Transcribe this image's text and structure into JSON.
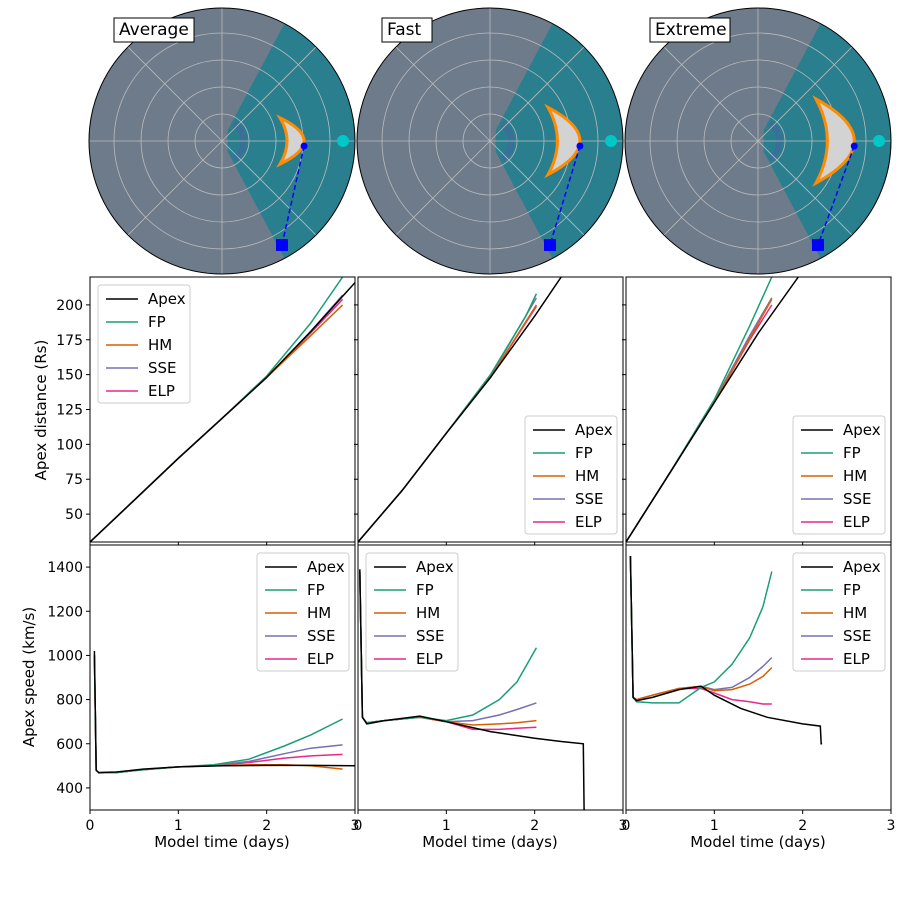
{
  "figure": {
    "panel_titles": [
      "Average",
      "Fast",
      "Extreme"
    ],
    "colors": {
      "Apex": "#000000",
      "FP": "#1b9e77",
      "HM": "#d95f02",
      "SSE": "#7570b3",
      "ELP": "#e7298a",
      "background_wind": "#6e7b8b",
      "hss_region": "#2a7f8f",
      "hss_inner": "#3a6f98",
      "cme_outline": "#ff8c00",
      "cme_fill": "#d3d3d3",
      "earth_marker": "#00c8c8",
      "observer_marker": "#0000ff",
      "grid": "#bbbbbb"
    },
    "icons": {
      "earth": "cyan-circle",
      "observer": "blue-square",
      "apex": "blue-dot"
    }
  },
  "chart_data": [
    {
      "type": "polar",
      "title": "Average",
      "description_elements": [
        "HUXt solar wind speed field",
        "CME boundary",
        "Earth",
        "observer line of sight"
      ]
    },
    {
      "type": "polar",
      "title": "Fast"
    },
    {
      "type": "polar",
      "title": "Extreme"
    },
    {
      "type": "line",
      "panel": "Average distance",
      "ylabel": "Apex distance (Rs)",
      "ylim": [
        30,
        220
      ],
      "xlim": [
        0,
        3
      ],
      "yticks": [
        50,
        75,
        100,
        125,
        150,
        175,
        200
      ],
      "legend_position": "upper-left",
      "series": [
        {
          "name": "Apex",
          "x": [
            0,
            0.5,
            1.0,
            1.5,
            2.0,
            2.5,
            3.0
          ],
          "y": [
            30,
            60,
            90,
            119,
            148,
            181,
            216
          ]
        },
        {
          "name": "FP",
          "x": [
            0,
            0.5,
            1.0,
            1.5,
            2.0,
            2.5,
            2.86
          ],
          "y": [
            30,
            60,
            90,
            119,
            149,
            187,
            220
          ]
        },
        {
          "name": "HM",
          "x": [
            0,
            0.5,
            1.0,
            1.5,
            2.0,
            2.5,
            2.86
          ],
          "y": [
            30,
            60,
            90,
            119,
            148,
            178,
            200
          ]
        },
        {
          "name": "SSE",
          "x": [
            0,
            0.5,
            1.0,
            1.5,
            2.0,
            2.5,
            2.86
          ],
          "y": [
            30,
            60,
            90,
            119,
            148,
            181,
            207
          ]
        },
        {
          "name": "ELP",
          "x": [
            0,
            0.5,
            1.0,
            1.5,
            2.0,
            2.5,
            2.86
          ],
          "y": [
            30,
            60,
            90,
            119,
            148,
            180,
            204
          ]
        }
      ]
    },
    {
      "type": "line",
      "panel": "Fast distance",
      "ylim": [
        30,
        220
      ],
      "xlim": [
        0,
        3
      ],
      "legend_position": "lower-right",
      "series": [
        {
          "name": "Apex",
          "x": [
            0,
            0.5,
            1.0,
            1.5,
            2.0,
            2.3
          ],
          "y": [
            30,
            67,
            108,
            148,
            192,
            220
          ]
        },
        {
          "name": "FP",
          "x": [
            0,
            0.5,
            1.0,
            1.5,
            1.9,
            2.02
          ],
          "y": [
            30,
            67,
            108,
            150,
            192,
            208
          ]
        },
        {
          "name": "HM",
          "x": [
            0,
            0.5,
            1.0,
            1.5,
            2.02
          ],
          "y": [
            30,
            67,
            108,
            148,
            200
          ]
        },
        {
          "name": "SSE",
          "x": [
            0,
            0.5,
            1.0,
            1.5,
            2.02
          ],
          "y": [
            30,
            67,
            108,
            149,
            205
          ]
        },
        {
          "name": "ELP",
          "x": [
            0,
            0.5,
            1.0,
            1.5,
            2.02
          ],
          "y": [
            30,
            67,
            108,
            148,
            199
          ]
        }
      ]
    },
    {
      "type": "line",
      "panel": "Extreme distance",
      "ylim": [
        30,
        220
      ],
      "xlim": [
        0,
        3
      ],
      "legend_position": "lower-right",
      "series": [
        {
          "name": "Apex",
          "x": [
            0,
            0.5,
            1.0,
            1.5,
            1.95
          ],
          "y": [
            30,
            80,
            130,
            180,
            220
          ]
        },
        {
          "name": "FP",
          "x": [
            0,
            0.5,
            1.0,
            1.4,
            1.65
          ],
          "y": [
            30,
            80,
            132,
            185,
            220
          ]
        },
        {
          "name": "HM",
          "x": [
            0,
            0.5,
            1.0,
            1.4,
            1.65
          ],
          "y": [
            30,
            80,
            130,
            176,
            204
          ]
        },
        {
          "name": "SSE",
          "x": [
            0,
            0.5,
            1.0,
            1.4,
            1.65
          ],
          "y": [
            30,
            80,
            131,
            178,
            205
          ]
        },
        {
          "name": "ELP",
          "x": [
            0,
            0.5,
            1.0,
            1.4,
            1.65
          ],
          "y": [
            30,
            80,
            130,
            175,
            200
          ]
        }
      ]
    },
    {
      "type": "line",
      "panel": "Average speed",
      "ylabel": "Apex speed (km/s)",
      "xlabel": "Model time (days)",
      "ylim": [
        300,
        1500
      ],
      "xlim": [
        0,
        3
      ],
      "yticks": [
        400,
        600,
        800,
        1000,
        1200,
        1400
      ],
      "xticks": [
        0,
        1,
        2,
        3
      ],
      "legend_position": "upper-right",
      "series": [
        {
          "name": "Apex",
          "x": [
            0.05,
            0.07,
            0.1,
            0.3,
            0.6,
            1.0,
            1.5,
            2.0,
            2.5,
            3.0
          ],
          "y": [
            1020,
            480,
            470,
            472,
            485,
            495,
            500,
            502,
            502,
            500
          ]
        },
        {
          "name": "FP",
          "x": [
            0.05,
            0.07,
            0.1,
            0.3,
            0.6,
            1.0,
            1.4,
            1.8,
            2.2,
            2.5,
            2.86
          ],
          "y": [
            1000,
            480,
            468,
            470,
            482,
            495,
            505,
            530,
            590,
            640,
            712
          ]
        },
        {
          "name": "HM",
          "x": [
            0.05,
            0.07,
            0.1,
            0.3,
            0.6,
            1.0,
            1.4,
            1.8,
            2.2,
            2.5,
            2.86
          ],
          "y": [
            1000,
            480,
            468,
            470,
            482,
            495,
            500,
            505,
            505,
            500,
            485
          ]
        },
        {
          "name": "SSE",
          "x": [
            0.05,
            0.07,
            0.1,
            0.3,
            0.6,
            1.0,
            1.4,
            1.8,
            2.2,
            2.5,
            2.86
          ],
          "y": [
            1000,
            480,
            468,
            470,
            482,
            495,
            502,
            520,
            555,
            580,
            595
          ]
        },
        {
          "name": "ELP",
          "x": [
            0.05,
            0.07,
            0.1,
            0.3,
            0.6,
            1.0,
            1.4,
            1.8,
            2.2,
            2.5,
            2.86
          ],
          "y": [
            1000,
            480,
            468,
            470,
            482,
            495,
            501,
            515,
            535,
            545,
            552
          ]
        }
      ]
    },
    {
      "type": "line",
      "panel": "Fast speed",
      "xlabel": "Model time (days)",
      "ylim": [
        300,
        1500
      ],
      "xlim": [
        0,
        3
      ],
      "xticks": [
        0,
        1,
        2,
        3
      ],
      "legend_position": "upper-left",
      "series": [
        {
          "name": "Apex",
          "x": [
            0.02,
            0.05,
            0.1,
            0.3,
            0.7,
            1.0,
            1.5,
            2.0,
            2.3,
            2.55,
            2.56,
            2.57
          ],
          "y": [
            1390,
            720,
            690,
            705,
            725,
            700,
            655,
            625,
            610,
            600,
            300,
            300
          ]
        },
        {
          "name": "FP",
          "x": [
            0.02,
            0.05,
            0.1,
            0.3,
            0.7,
            1.0,
            1.3,
            1.6,
            1.8,
            2.02
          ],
          "y": [
            1380,
            720,
            695,
            705,
            720,
            705,
            730,
            800,
            880,
            1035
          ]
        },
        {
          "name": "HM",
          "x": [
            0.02,
            0.05,
            0.1,
            0.3,
            0.7,
            1.0,
            1.3,
            1.6,
            1.8,
            2.02
          ],
          "y": [
            1380,
            720,
            695,
            705,
            720,
            700,
            685,
            690,
            695,
            705
          ]
        },
        {
          "name": "SSE",
          "x": [
            0.02,
            0.05,
            0.1,
            0.3,
            0.7,
            1.0,
            1.3,
            1.6,
            1.8,
            2.02
          ],
          "y": [
            1380,
            720,
            695,
            705,
            720,
            700,
            705,
            730,
            755,
            785
          ]
        },
        {
          "name": "ELP",
          "x": [
            0.02,
            0.05,
            0.1,
            0.3,
            0.7,
            1.0,
            1.3,
            1.6,
            1.8,
            2.02
          ],
          "y": [
            1380,
            720,
            695,
            705,
            720,
            700,
            665,
            665,
            670,
            675
          ]
        }
      ]
    },
    {
      "type": "line",
      "panel": "Extreme speed",
      "xlabel": "Model time (days)",
      "ylim": [
        300,
        1500
      ],
      "xlim": [
        0,
        3
      ],
      "xticks": [
        0,
        1,
        2,
        3
      ],
      "legend_position": "upper-right",
      "series": [
        {
          "name": "Apex",
          "x": [
            0.05,
            0.08,
            0.12,
            0.3,
            0.6,
            0.85,
            1.0,
            1.3,
            1.6,
            2.0,
            2.2,
            2.21,
            2.22
          ],
          "y": [
            1450,
            810,
            795,
            810,
            845,
            860,
            820,
            760,
            720,
            690,
            680,
            600,
            600
          ]
        },
        {
          "name": "FP",
          "x": [
            0.05,
            0.08,
            0.12,
            0.3,
            0.6,
            0.85,
            1.0,
            1.2,
            1.4,
            1.55,
            1.65
          ],
          "y": [
            1450,
            810,
            790,
            785,
            785,
            855,
            880,
            960,
            1080,
            1220,
            1380
          ]
        },
        {
          "name": "HM",
          "x": [
            0.05,
            0.08,
            0.12,
            0.3,
            0.6,
            0.85,
            1.0,
            1.2,
            1.4,
            1.55,
            1.65
          ],
          "y": [
            1450,
            810,
            800,
            820,
            850,
            860,
            840,
            845,
            870,
            905,
            945
          ]
        },
        {
          "name": "SSE",
          "x": [
            0.05,
            0.08,
            0.12,
            0.3,
            0.6,
            0.85,
            1.0,
            1.2,
            1.4,
            1.55,
            1.65
          ],
          "y": [
            1450,
            810,
            800,
            820,
            850,
            860,
            845,
            855,
            900,
            950,
            990
          ]
        },
        {
          "name": "ELP",
          "x": [
            0.05,
            0.08,
            0.12,
            0.3,
            0.6,
            0.85,
            1.0,
            1.2,
            1.4,
            1.55,
            1.65
          ],
          "y": [
            1450,
            810,
            800,
            820,
            850,
            850,
            830,
            800,
            790,
            780,
            780
          ]
        }
      ]
    }
  ],
  "legend_labels": [
    "Apex",
    "FP",
    "HM",
    "SSE",
    "ELP"
  ],
  "axis": {
    "ylabel_distance": "Apex distance (Rs)",
    "ylabel_speed": "Apex speed (km/s)",
    "xlabel": "Model time (days)"
  }
}
